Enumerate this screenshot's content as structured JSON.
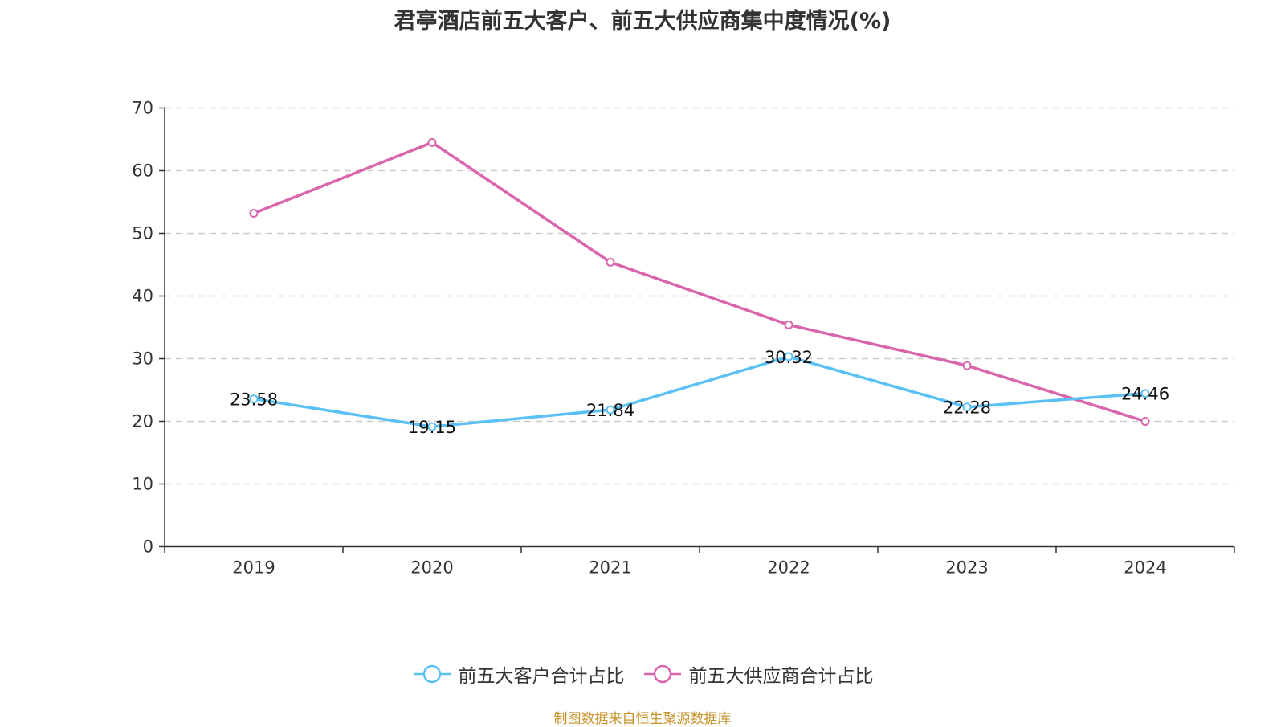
{
  "chart_data": {
    "type": "line",
    "title": "君亭酒店前五大客户、前五大供应商集中度情况(%)",
    "xlabel": "",
    "ylabel": "",
    "categories": [
      "2019",
      "2020",
      "2021",
      "2022",
      "2023",
      "2024"
    ],
    "ylim": [
      0,
      70
    ],
    "yticks": [
      0,
      10,
      20,
      30,
      40,
      50,
      60,
      70
    ],
    "grid": true,
    "legend_position": "bottom",
    "series": [
      {
        "name": "前五大客户合计占比",
        "color": "#5bc0f5",
        "values": [
          23.58,
          19.15,
          21.84,
          30.32,
          22.28,
          24.46
        ],
        "labels": [
          "23.58",
          "19.15",
          "21.84",
          "30.32",
          "22.28",
          "24.46"
        ],
        "show_labels": true
      },
      {
        "name": "前五大供应商合计占比",
        "color": "#d965ac",
        "values": [
          53.2,
          64.5,
          45.4,
          35.4,
          28.9,
          20.0
        ],
        "show_labels": false
      }
    ]
  },
  "footer": "制图数据来自恒生聚源数据库"
}
